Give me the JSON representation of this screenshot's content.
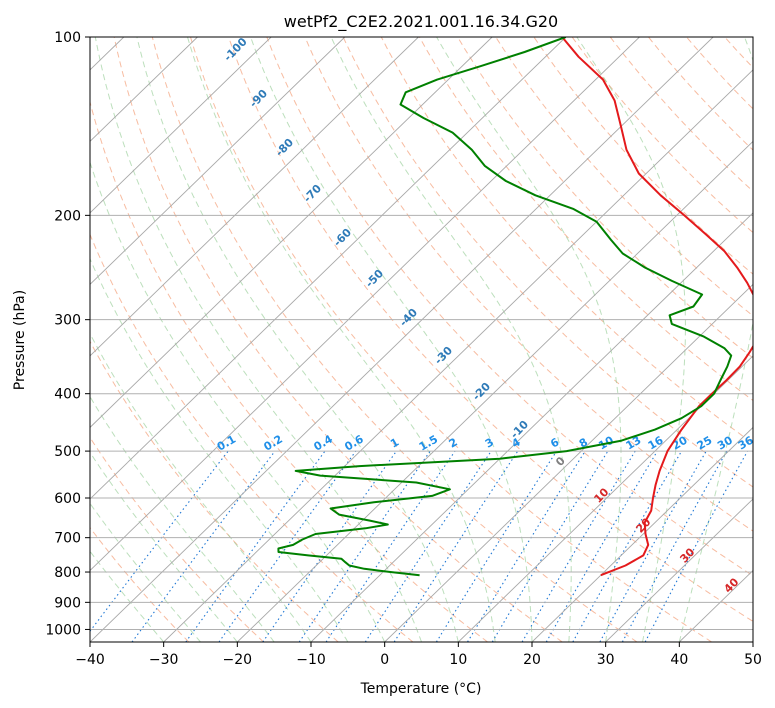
{
  "chart_data": {
    "type": "skewt",
    "title": "wetPf2_C2E2.2021.001.16.34.G20",
    "xlabel": "Temperature (°C)",
    "ylabel": "Pressure (hPa)",
    "xlim": [
      -40,
      50
    ],
    "ylim": [
      1050,
      100
    ],
    "x_ticks": [
      -40,
      -30,
      -20,
      -10,
      0,
      10,
      20,
      30,
      40,
      50
    ],
    "y_ticks": [
      100,
      200,
      300,
      400,
      500,
      600,
      700,
      800,
      900,
      1000
    ],
    "grid": true,
    "skew_isotherm_labels": [
      "-100",
      "-90",
      "-80",
      "-70",
      "-60",
      "-50",
      "-40",
      "-30",
      "-20",
      "-10",
      "0",
      "10",
      "20",
      "30",
      "40"
    ],
    "mixing_ratio_labels": [
      "0.1",
      "0.2",
      "0.4",
      "0.6",
      "1",
      "1.5",
      "2",
      "3",
      "4",
      "6",
      "8",
      "10",
      "13",
      "16",
      "20",
      "25",
      "30",
      "36"
    ],
    "series": [
      {
        "color": "#e41a1c",
        "points": [
          {
            "p": 810,
            "t": 20.0
          },
          {
            "p": 780,
            "t": 22.0
          },
          {
            "p": 750,
            "t": 23.0
          },
          {
            "p": 720,
            "t": 22.2
          },
          {
            "p": 690,
            "t": 20.3
          },
          {
            "p": 660,
            "t": 18.6
          },
          {
            "p": 630,
            "t": 17.8
          },
          {
            "p": 600,
            "t": 16.3
          },
          {
            "p": 570,
            "t": 14.8
          },
          {
            "p": 540,
            "t": 13.4
          },
          {
            "p": 500,
            "t": 11.7
          },
          {
            "p": 460,
            "t": 10.6
          },
          {
            "p": 420,
            "t": 9.7
          },
          {
            "p": 400,
            "t": 9.7
          },
          {
            "p": 380,
            "t": 9.8
          },
          {
            "p": 360,
            "t": 9.7
          },
          {
            "p": 340,
            "t": 9.0
          },
          {
            "p": 320,
            "t": 8.1
          },
          {
            "p": 300,
            "t": 6.5
          },
          {
            "p": 280,
            "t": 3.0
          },
          {
            "p": 260,
            "t": -1.0
          },
          {
            "p": 245,
            "t": -4.5
          },
          {
            "p": 230,
            "t": -8.5
          },
          {
            "p": 215,
            "t": -13.5
          },
          {
            "p": 200,
            "t": -19.0
          },
          {
            "p": 185,
            "t": -25.0
          },
          {
            "p": 170,
            "t": -31.0
          },
          {
            "p": 155,
            "t": -36.0
          },
          {
            "p": 140,
            "t": -40.5
          },
          {
            "p": 128,
            "t": -44.5
          },
          {
            "p": 118,
            "t": -49.0
          },
          {
            "p": 108,
            "t": -55.5
          },
          {
            "p": 100,
            "t": -60.5
          }
        ]
      },
      {
        "color": "#008000",
        "points": [
          {
            "p": 810,
            "t": -4.6
          },
          {
            "p": 800,
            "t": -9.0
          },
          {
            "p": 790,
            "t": -13.0
          },
          {
            "p": 780,
            "t": -15.5
          },
          {
            "p": 770,
            "t": -16.5
          },
          {
            "p": 760,
            "t": -17.5
          },
          {
            "p": 750,
            "t": -22.5
          },
          {
            "p": 740,
            "t": -27.0
          },
          {
            "p": 730,
            "t": -27.5
          },
          {
            "p": 720,
            "t": -26.0
          },
          {
            "p": 705,
            "t": -25.5
          },
          {
            "p": 690,
            "t": -24.5
          },
          {
            "p": 675,
            "t": -18.5
          },
          {
            "p": 665,
            "t": -16.0
          },
          {
            "p": 655,
            "t": -19.0
          },
          {
            "p": 640,
            "t": -24.0
          },
          {
            "p": 625,
            "t": -26.0
          },
          {
            "p": 610,
            "t": -21.0
          },
          {
            "p": 595,
            "t": -14.0
          },
          {
            "p": 580,
            "t": -12.5
          },
          {
            "p": 565,
            "t": -18.0
          },
          {
            "p": 550,
            "t": -32.0
          },
          {
            "p": 540,
            "t": -36.0
          },
          {
            "p": 530,
            "t": -28.0
          },
          {
            "p": 515,
            "t": -10.0
          },
          {
            "p": 500,
            "t": -2.0
          },
          {
            "p": 480,
            "t": 4.0
          },
          {
            "p": 460,
            "t": 7.0
          },
          {
            "p": 440,
            "t": 9.0
          },
          {
            "p": 420,
            "t": 10.0
          },
          {
            "p": 400,
            "t": 10.0
          },
          {
            "p": 380,
            "t": 9.0
          },
          {
            "p": 360,
            "t": 8.0
          },
          {
            "p": 345,
            "t": 7.0
          },
          {
            "p": 335,
            "t": 5.0
          },
          {
            "p": 320,
            "t": 0.5
          },
          {
            "p": 305,
            "t": -5.5
          },
          {
            "p": 295,
            "t": -7.0
          },
          {
            "p": 285,
            "t": -5.0
          },
          {
            "p": 272,
            "t": -5.5
          },
          {
            "p": 258,
            "t": -11.5
          },
          {
            "p": 245,
            "t": -17.0
          },
          {
            "p": 232,
            "t": -22.0
          },
          {
            "p": 220,
            "t": -25.5
          },
          {
            "p": 205,
            "t": -30.0
          },
          {
            "p": 195,
            "t": -35.0
          },
          {
            "p": 185,
            "t": -42.0
          },
          {
            "p": 175,
            "t": -48.0
          },
          {
            "p": 165,
            "t": -53.0
          },
          {
            "p": 155,
            "t": -57.0
          },
          {
            "p": 145,
            "t": -62.0
          },
          {
            "p": 137,
            "t": -68.0
          },
          {
            "p": 130,
            "t": -73.0
          },
          {
            "p": 124,
            "t": -74.0
          },
          {
            "p": 118,
            "t": -71.5
          },
          {
            "p": 112,
            "t": -67.5
          },
          {
            "p": 106,
            "t": -63.5
          },
          {
            "p": 100,
            "t": -60.0
          }
        ]
      }
    ]
  }
}
